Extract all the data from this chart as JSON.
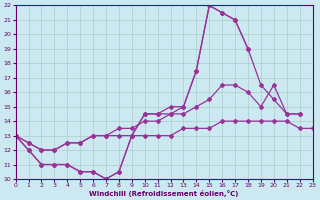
{
  "xlabel": "Windchill (Refroidissement éolien,°C)",
  "bg_color": "#cce8f0",
  "grid_color": "#aacccc",
  "line_color": "#993399",
  "xmin": 0,
  "xmax": 23,
  "ymin": 10,
  "ymax": 22,
  "yticks": [
    10,
    11,
    12,
    13,
    14,
    15,
    16,
    17,
    18,
    19,
    20,
    21,
    22
  ],
  "xticks": [
    0,
    1,
    2,
    3,
    4,
    5,
    6,
    7,
    8,
    9,
    10,
    11,
    12,
    13,
    14,
    15,
    16,
    17,
    18,
    19,
    20,
    21,
    22,
    23
  ],
  "line1_x": [
    0,
    1,
    2,
    3,
    4,
    5,
    6,
    7,
    8,
    9,
    10,
    11,
    12,
    13,
    14,
    15,
    16,
    17,
    18
  ],
  "line1_y": [
    13,
    12,
    11,
    11,
    11,
    10.5,
    10.5,
    10,
    10.5,
    13,
    14.5,
    14.5,
    14.5,
    15,
    17.5,
    22,
    21.5,
    21,
    19
  ],
  "line2_x": [
    0,
    1,
    2,
    3,
    4,
    5,
    6,
    7,
    8,
    9,
    10,
    11,
    12,
    13,
    14,
    15,
    16,
    17,
    18,
    19,
    20,
    21,
    22
  ],
  "line2_y": [
    13,
    12,
    11,
    11,
    11,
    10.5,
    10.5,
    10,
    10.5,
    13,
    14.5,
    14.5,
    15,
    15,
    17.5,
    22,
    21.5,
    21,
    19,
    16.5,
    15.5,
    14.5,
    14.5
  ],
  "line3_x": [
    0,
    1,
    2,
    3,
    4,
    5,
    6,
    7,
    8,
    9,
    10,
    11,
    12,
    13,
    14,
    15,
    16,
    17,
    18,
    19,
    20,
    21,
    22
  ],
  "line3_y": [
    13,
    12.5,
    12,
    12,
    12.5,
    12.5,
    13,
    13,
    13.5,
    13.5,
    14,
    14,
    14.5,
    14.5,
    15,
    15.5,
    16.5,
    16.5,
    16,
    15,
    16.5,
    14.5,
    14.5
  ],
  "line4_x": [
    0,
    1,
    2,
    3,
    4,
    5,
    6,
    7,
    8,
    9,
    10,
    11,
    12,
    13,
    14,
    15,
    16,
    17,
    18,
    19,
    20,
    21,
    22,
    23
  ],
  "line4_y": [
    13,
    12.5,
    12,
    12,
    12.5,
    12.5,
    13,
    13,
    13,
    13,
    13,
    13,
    13,
    13.5,
    13.5,
    13.5,
    14,
    14,
    14,
    14,
    14,
    14,
    13.5,
    13.5
  ]
}
